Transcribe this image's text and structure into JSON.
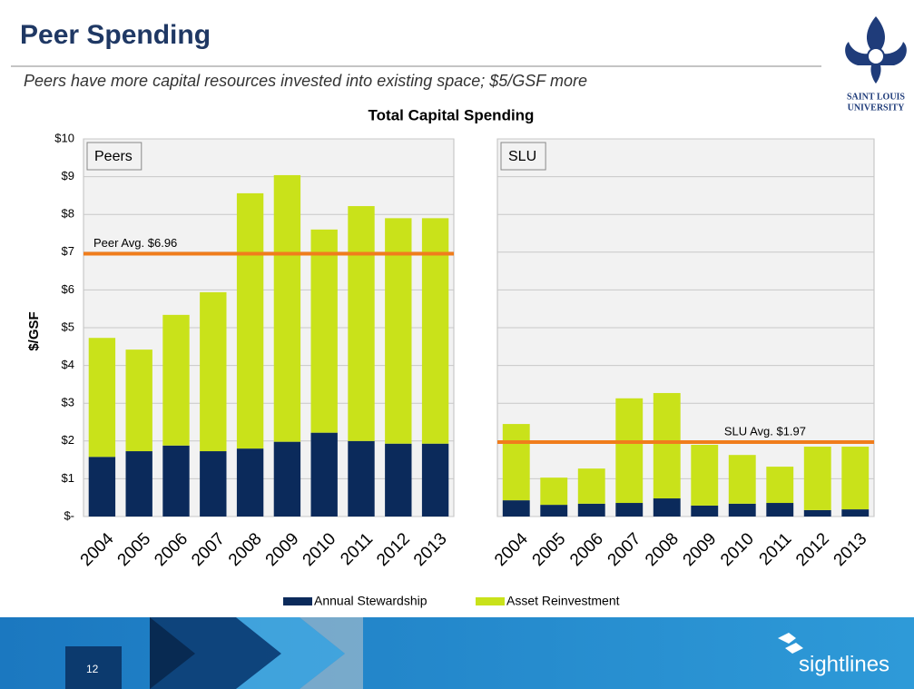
{
  "slide": {
    "title": "Peer Spending",
    "subtitle": "Peers have more capital resources invested into existing space; $5/GSF more",
    "university": [
      "SAINT LOUIS",
      "UNIVERSITY"
    ],
    "page_number": "12",
    "brand": "sightlines"
  },
  "chart_data": [
    {
      "type": "bar",
      "stacked": true,
      "title": "Total Capital Spending",
      "y_label": "$/GSF",
      "panel_label": "Peers",
      "categories": [
        "2004",
        "2005",
        "2006",
        "2007",
        "2008",
        "2009",
        "2010",
        "2011",
        "2012",
        "2013"
      ],
      "series": [
        {
          "name": "Annual Stewardship",
          "color": "#0b2a5b",
          "values": [
            1.58,
            1.73,
            1.88,
            1.73,
            1.8,
            1.98,
            2.22,
            2.0,
            1.93,
            1.93
          ]
        },
        {
          "name": "Asset Reinvestment",
          "color": "#c9e21a",
          "values": [
            3.15,
            2.69,
            3.46,
            4.21,
            6.76,
            7.06,
            5.38,
            6.22,
            5.97,
            5.97
          ]
        }
      ],
      "ylim": [
        0,
        10
      ],
      "yticks": [
        {
          "value": 0,
          "label": "$-"
        },
        {
          "value": 1,
          "label": "$1"
        },
        {
          "value": 2,
          "label": "$2"
        },
        {
          "value": 3,
          "label": "$3"
        },
        {
          "value": 4,
          "label": "$4"
        },
        {
          "value": 5,
          "label": "$5"
        },
        {
          "value": 6,
          "label": "$6"
        },
        {
          "value": 7,
          "label": "$7"
        },
        {
          "value": 8,
          "label": "$8"
        },
        {
          "value": 9,
          "label": "$9"
        },
        {
          "value": 10,
          "label": "$10"
        }
      ],
      "grid": true,
      "annotations": [
        {
          "label": "Peer Avg. $6.96",
          "value": 6.96,
          "color": "#f07d1c"
        }
      ]
    },
    {
      "type": "bar",
      "stacked": true,
      "panel_label": "SLU",
      "categories": [
        "2004",
        "2005",
        "2006",
        "2007",
        "2008",
        "2009",
        "2010",
        "2011",
        "2012",
        "2013"
      ],
      "series": [
        {
          "color": "#0b2a5b",
          "values": [
            0.43,
            0.31,
            0.34,
            0.36,
            0.48,
            0.29,
            0.34,
            0.36,
            0.17,
            0.19
          ]
        },
        {
          "color": "#c9e21a",
          "values": [
            2.02,
            0.72,
            0.93,
            2.77,
            2.79,
            1.61,
            1.29,
            0.96,
            1.68,
            1.66
          ]
        }
      ],
      "ylim": [
        0,
        10
      ],
      "yticks": [
        0,
        1,
        2,
        3,
        4,
        5,
        6,
        7,
        8,
        9,
        10
      ],
      "grid": true,
      "annotations": [
        {
          "label": "SLU Avg. $1.97",
          "value": 1.97,
          "color": "#f07d1c"
        }
      ]
    }
  ]
}
